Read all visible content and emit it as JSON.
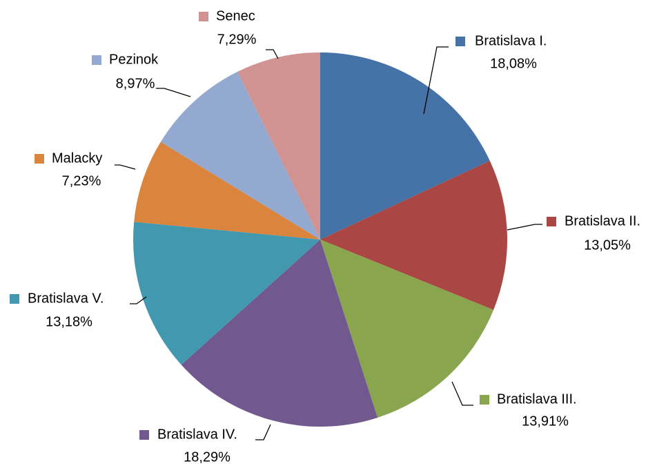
{
  "chart_data": {
    "type": "pie",
    "categories": [
      "Bratislava I.",
      "Bratislava II.",
      "Bratislava III.",
      "Bratislava IV.",
      "Bratislava V.",
      "Malacky",
      "Pezinok",
      "Senec"
    ],
    "values": [
      18.08,
      13.05,
      13.91,
      18.29,
      13.18,
      7.23,
      8.97,
      7.29
    ],
    "value_labels": [
      "18,08%",
      "13,05%",
      "13,91%",
      "18,29%",
      "13,18%",
      "7,23%",
      "8,97%",
      "7,29%"
    ],
    "colors": [
      "#4572a7",
      "#aa4643",
      "#89a54e",
      "#71588f",
      "#4198af",
      "#db843d",
      "#93a9cf",
      "#d19392"
    ]
  }
}
